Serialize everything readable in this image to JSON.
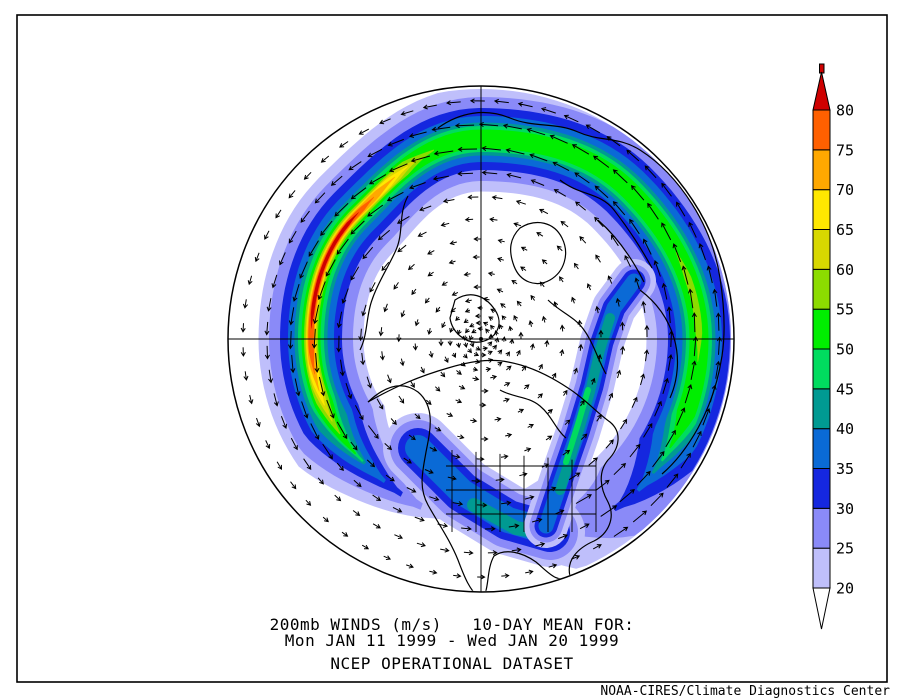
{
  "figure": {
    "caption_line1": "200mb WINDS (m/s)   10-DAY MEAN FOR:",
    "caption_line2": "Mon JAN 11 1999 - Wed JAN 20 1999",
    "caption_line3": "NCEP OPERATIONAL DATASET",
    "credit": "NOAA-CIRES/Climate Diagnostics Center"
  },
  "chart_data": {
    "type": "heatmap",
    "title": "200mb WINDS (m/s)  10-DAY MEAN FOR: Mon JAN 11 1999 - Wed JAN 20 1999",
    "subtitle": "NCEP OPERATIONAL DATASET",
    "variable": "200mb WINDS",
    "units": "m/s",
    "averaging_period": "10-DAY MEAN",
    "date_start": "Mon JAN 11 1999",
    "date_end": "Wed JAN 20 1999",
    "map": {
      "projection": "Northern Hemisphere polar view, North America at bottom",
      "overlay": "wind vector arrows, counterclockwise circumpolar flow with dense vortex spiral at pole",
      "features": [
        "jet maximum >80 m/s (red/orange core) over North Pacific, upper-left",
        "green 45-60 m/s band across Siberia (top) and down the right side",
        "blue 30-40 m/s band over the United States at bottom",
        "teal/green subtropical band from Gulf of Mexico northeast over Atlantic",
        "calm white region (<20 m/s) at pole, lower-left and lower-right gaps"
      ]
    },
    "colorbar": {
      "orientation": "vertical",
      "position": "right",
      "levels": [
        20,
        25,
        30,
        35,
        40,
        45,
        50,
        55,
        60,
        65,
        70,
        75,
        80
      ],
      "band_colors": [
        "#BFBFFB",
        "#8A8AF8",
        "#1527DF",
        "#0A6AD6",
        "#009A92",
        "#00DC5F",
        "#00EE00",
        "#8CDC00",
        "#D8D800",
        "#FFE800",
        "#FFA800",
        "#FF6000"
      ],
      "over_color": "#CE0000",
      "under_color": "#FFFFFF"
    }
  }
}
